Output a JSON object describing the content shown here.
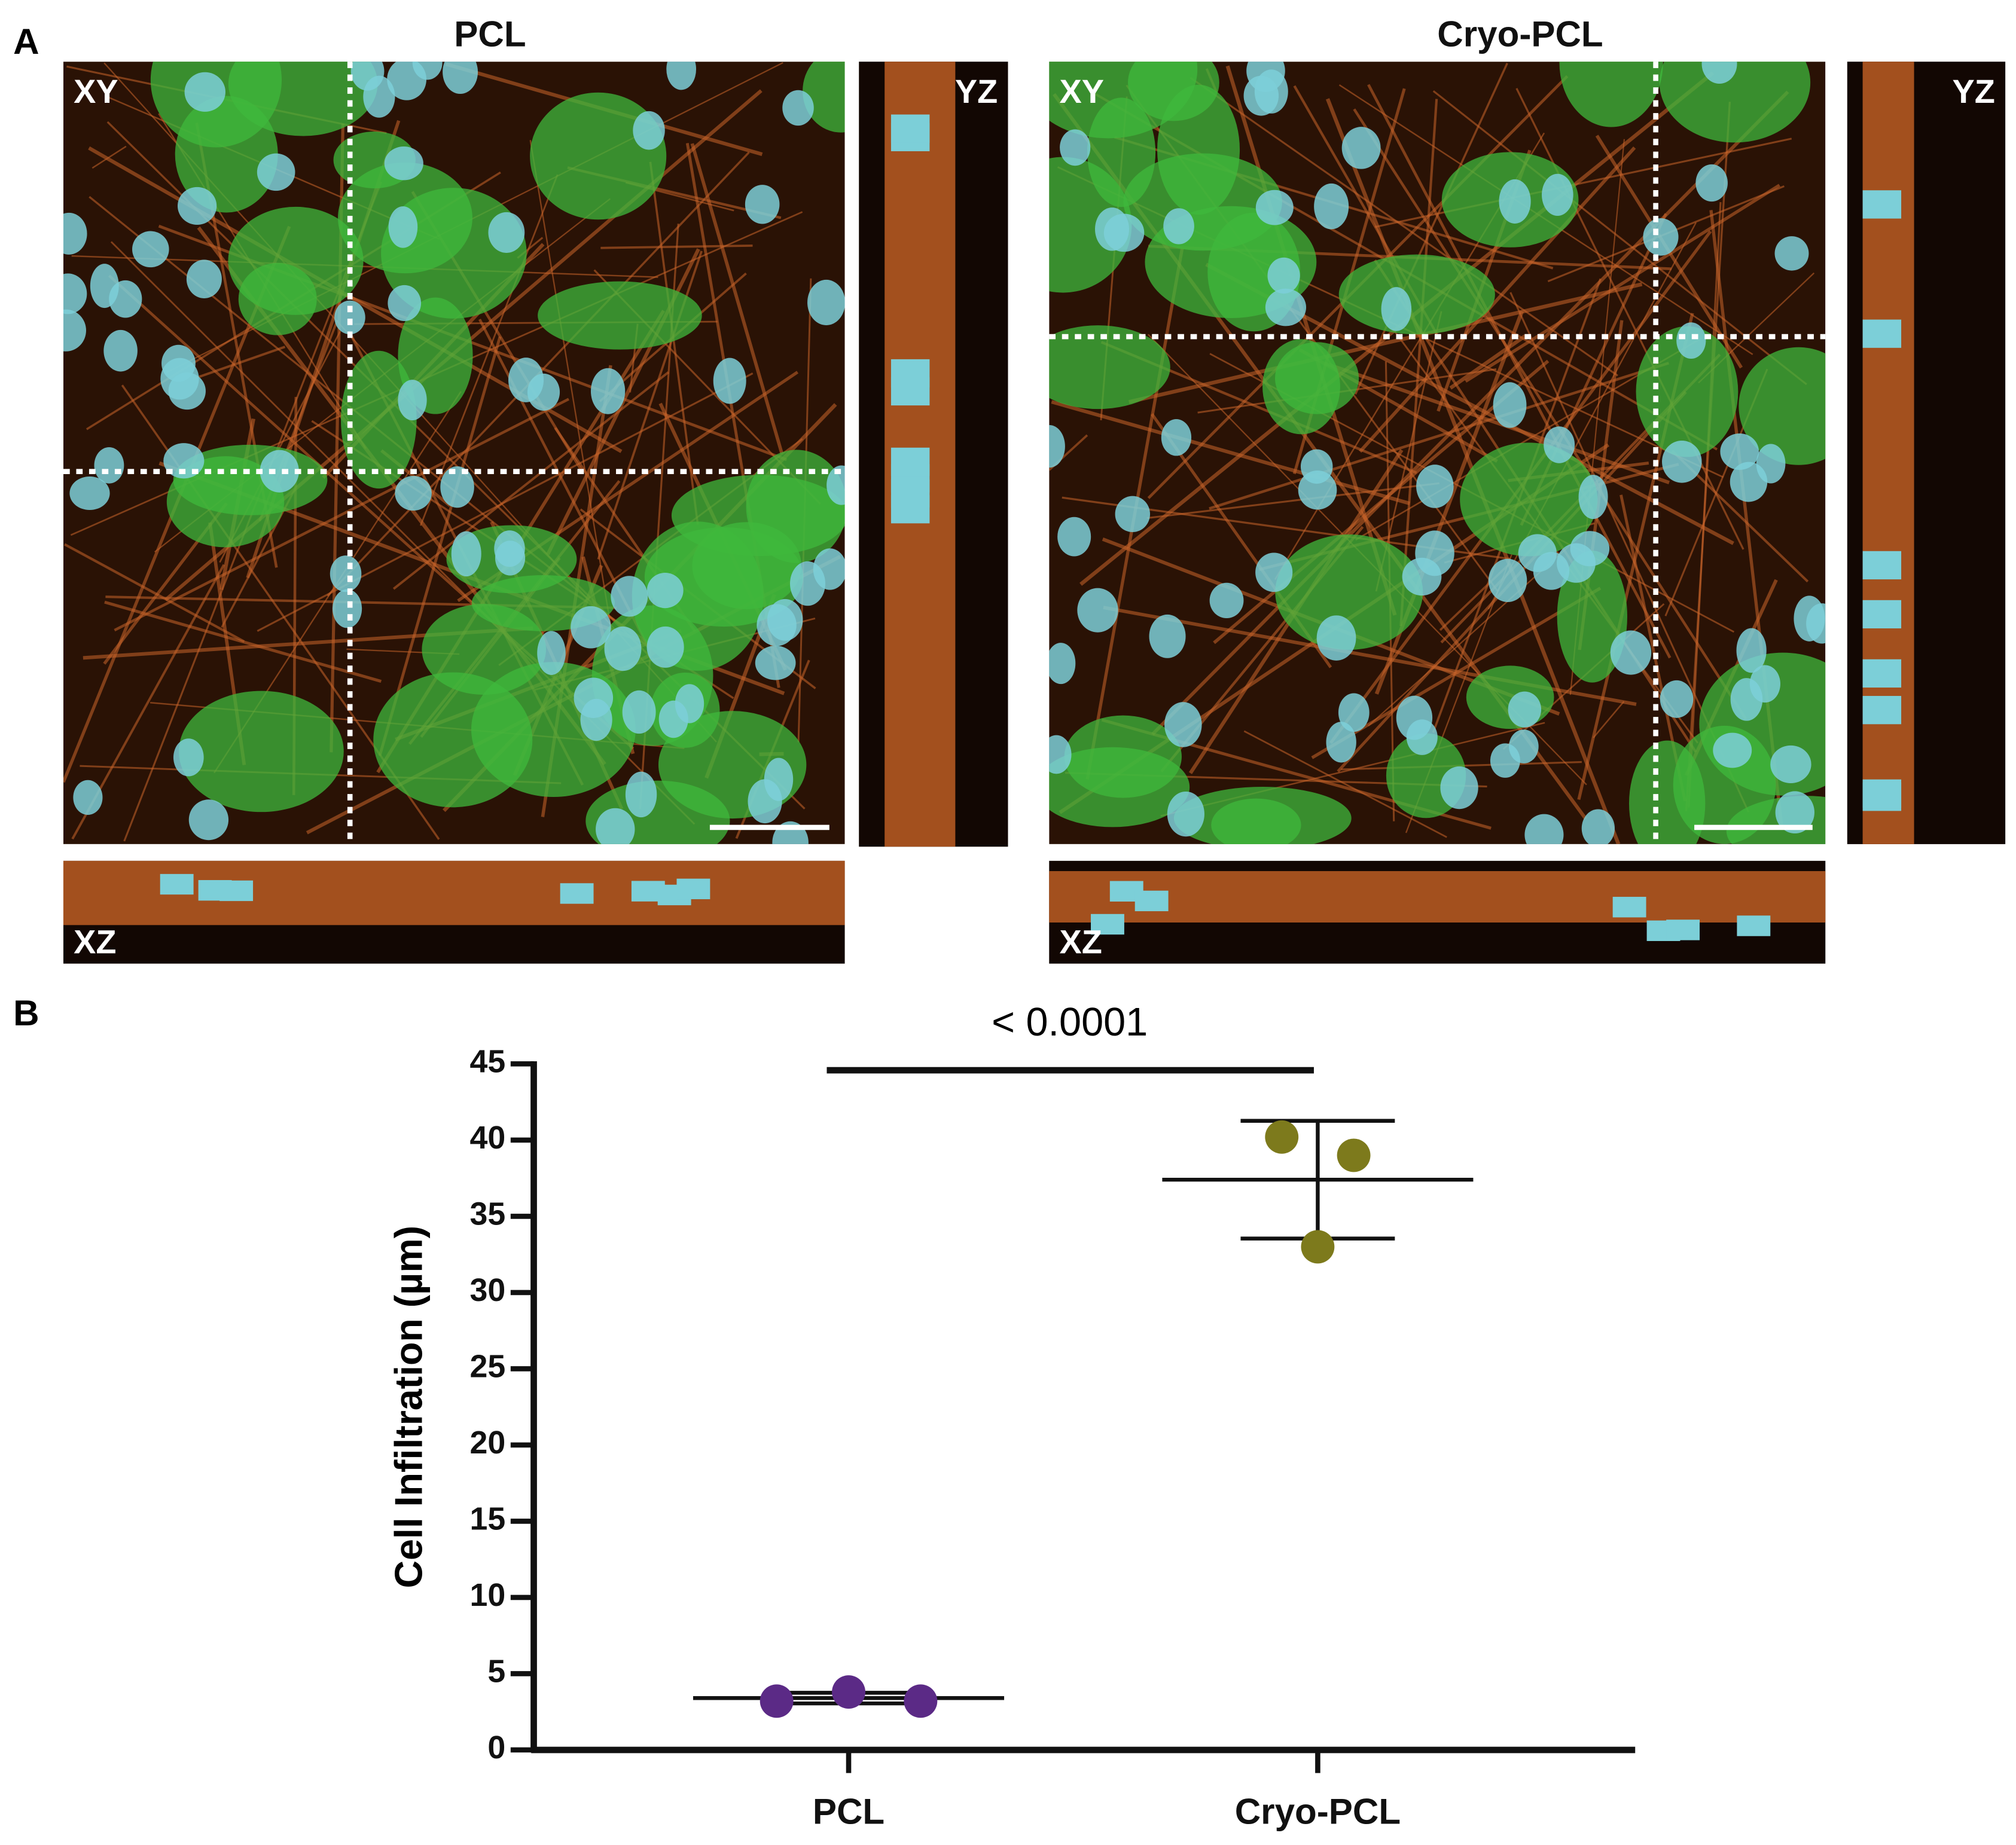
{
  "panel_a": {
    "label": "A",
    "panels": [
      {
        "title": "PCL",
        "xy_label": "XY",
        "yz_label": "YZ",
        "xz_label": "XZ"
      },
      {
        "title": "Cryo-PCL",
        "xy_label": "XY",
        "yz_label": "YZ",
        "xz_label": "XZ"
      }
    ]
  },
  "panel_b": {
    "label": "B"
  },
  "chart_data": {
    "type": "scatter",
    "categories": [
      "PCL",
      "Cryo-PCL"
    ],
    "points": [
      [
        3.2,
        3.8,
        3.2
      ],
      [
        40.2,
        39,
        33
      ]
    ],
    "means": [
      3.4,
      37.4
    ],
    "sd": [
      0.35,
      3.86
    ],
    "colors": [
      "#5b2a86",
      "#7d7a1c"
    ],
    "ylabel": "Cell Infiltration (µm)",
    "ylim": [
      0,
      45
    ],
    "yticks": [
      0,
      5,
      10,
      15,
      20,
      25,
      30,
      35,
      40,
      45
    ],
    "annotation": "< 0.0001"
  }
}
